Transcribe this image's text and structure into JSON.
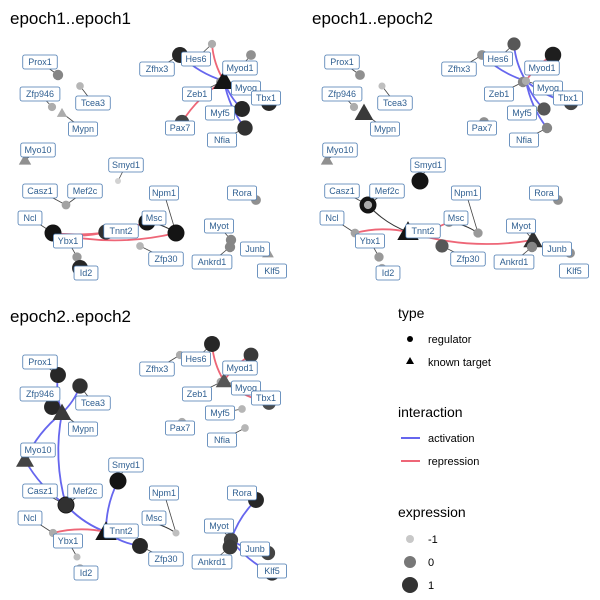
{
  "panels": [
    {
      "title": "epoch1..epoch1",
      "nodes": [
        {
          "id": "Prox1",
          "shape": "circle",
          "expr": -0.2,
          "show": true
        },
        {
          "id": "Zfp946",
          "shape": "circle",
          "expr": -0.6,
          "show": true
        },
        {
          "id": "Tcea3",
          "shape": "circle",
          "expr": -0.7,
          "show": true
        },
        {
          "id": "Mypn",
          "shape": "triangle",
          "expr": -0.6,
          "show": true
        },
        {
          "id": "Myo10",
          "shape": "triangle",
          "expr": -0.3,
          "show": true
        },
        {
          "id": "Smyd1",
          "shape": "circle",
          "expr": -1,
          "show": true
        },
        {
          "id": "Mef2c",
          "shape": "circle",
          "expr": -1,
          "show": true
        },
        {
          "id": "Casz1",
          "shape": "circle",
          "expr": -0.5,
          "show": true
        },
        {
          "id": "Ncl",
          "shape": "circle",
          "expr": 1,
          "show": true
        },
        {
          "id": "Ybx1",
          "shape": "circle",
          "expr": -0.4,
          "show": true
        },
        {
          "id": "Id2",
          "shape": "circle",
          "expr": 0.8,
          "show": true
        },
        {
          "id": "Tnnt2",
          "shape": "circle",
          "expr": 0.7,
          "show": true
        },
        {
          "id": "Zfp30",
          "shape": "circle",
          "expr": -0.7,
          "show": true
        },
        {
          "id": "Msc",
          "shape": "circle",
          "expr": 1,
          "show": true
        },
        {
          "id": "Npm1",
          "shape": "circle",
          "expr": 1,
          "show": true
        },
        {
          "id": "Myot",
          "shape": "circle",
          "expr": -0.2,
          "show": true
        },
        {
          "id": "Rora",
          "shape": "circle",
          "expr": -0.3,
          "show": true
        },
        {
          "id": "Junb",
          "shape": "triangle",
          "expr": -0.4,
          "show": true
        },
        {
          "id": "Ankrd1",
          "shape": "circle",
          "expr": -0.2,
          "show": true
        },
        {
          "id": "Klf5",
          "shape": "circle",
          "expr": -0.3,
          "show": true
        },
        {
          "id": "Zfhx3",
          "shape": "circle",
          "expr": 0.8,
          "show": true
        },
        {
          "id": "Hes6",
          "shape": "circle",
          "expr": -0.6,
          "show": true
        },
        {
          "id": "Myod1",
          "shape": "circle",
          "expr": -0.3,
          "show": true
        },
        {
          "id": "Zeb1",
          "shape": "circle",
          "expr": -0.3,
          "show": true
        },
        {
          "id": "Myog",
          "shape": "triangle",
          "expr": 1,
          "show": true
        },
        {
          "id": "Tbx1",
          "shape": "circle",
          "expr": 0.8,
          "show": true
        },
        {
          "id": "Pax7",
          "shape": "circle",
          "expr": 0.5,
          "show": true
        },
        {
          "id": "Myf5",
          "shape": "circle",
          "expr": 0.8,
          "show": true
        },
        {
          "id": "Nfia",
          "shape": "circle",
          "expr": 0.7,
          "show": true
        }
      ],
      "edges": [
        {
          "from": "Zfhx3",
          "to": "Myog",
          "type": "activation"
        },
        {
          "from": "Hes6",
          "to": "Myog",
          "type": "repression"
        },
        {
          "from": "Myog",
          "to": "Myf5",
          "type": "activation"
        },
        {
          "from": "Myog",
          "to": "Nfia",
          "type": "activation"
        },
        {
          "from": "Myog",
          "to": "Pax7",
          "type": "repression"
        },
        {
          "from": "Ncl",
          "to": "Msc",
          "type": "repression"
        },
        {
          "from": "Ncl",
          "to": "Npm1",
          "type": "repression"
        },
        {
          "from": "Ncl",
          "to": "Tnnt2",
          "type": "repression"
        },
        {
          "from": "Npm1",
          "to": "Msc",
          "type": "neutral"
        },
        {
          "from": "Mypn",
          "to": "Mypn",
          "type": "neutral"
        },
        {
          "from": "Mef2c",
          "to": "Mef2c",
          "type": "neutral"
        }
      ]
    },
    {
      "title": "epoch1..epoch2",
      "nodes": [
        {
          "id": "Prox1",
          "shape": "circle",
          "expr": -0.3,
          "show": true
        },
        {
          "id": "Zfp946",
          "shape": "circle",
          "expr": -0.6,
          "show": true
        },
        {
          "id": "Tcea3",
          "shape": "circle",
          "expr": -0.8,
          "show": true
        },
        {
          "id": "Mypn",
          "shape": "triangle",
          "expr": 0.6,
          "show": true
        },
        {
          "id": "Myo10",
          "shape": "triangle",
          "expr": -0.3,
          "show": true
        },
        {
          "id": "Smyd1",
          "shape": "circle",
          "expr": 1,
          "show": true
        },
        {
          "id": "Mef2c",
          "shape": "circle",
          "expr": 1,
          "show": true
        },
        {
          "id": "Casz1",
          "shape": "circle",
          "expr": -0.6,
          "show": true
        },
        {
          "id": "Ncl",
          "shape": "circle",
          "expr": -0.5,
          "show": true
        },
        {
          "id": "Ybx1",
          "shape": "circle",
          "expr": -0.4,
          "show": true
        },
        {
          "id": "Id2",
          "shape": "circle",
          "expr": -0.6,
          "show": true
        },
        {
          "id": "Tnnt2",
          "shape": "triangle",
          "expr": 1,
          "show": true
        },
        {
          "id": "Zfp30",
          "shape": "circle",
          "expr": 0.3,
          "show": true
        },
        {
          "id": "Msc",
          "shape": "circle",
          "expr": -0.3,
          "show": true
        },
        {
          "id": "Npm1",
          "shape": "circle",
          "expr": -0.4,
          "show": true
        },
        {
          "id": "Myot",
          "shape": "triangle",
          "expr": 0.7,
          "show": true
        },
        {
          "id": "Rora",
          "shape": "circle",
          "expr": -0.3,
          "show": true
        },
        {
          "id": "Junb",
          "shape": "circle",
          "expr": -0.3,
          "show": true
        },
        {
          "id": "Ankrd1",
          "shape": "circle",
          "expr": -0.2,
          "show": true
        },
        {
          "id": "Klf5",
          "shape": "circle",
          "expr": -0.2,
          "show": true
        },
        {
          "id": "Zfhx3",
          "shape": "circle",
          "expr": -0.3,
          "show": true
        },
        {
          "id": "Hes6",
          "shape": "circle",
          "expr": 0.3,
          "show": true
        },
        {
          "id": "Myod1",
          "shape": "circle",
          "expr": 0.9,
          "show": true
        },
        {
          "id": "Zeb1",
          "shape": "circle",
          "expr": -0.2,
          "show": true
        },
        {
          "id": "Myog",
          "shape": "circle",
          "expr": -0.6,
          "show": true
        },
        {
          "id": "Tbx1",
          "shape": "circle",
          "expr": 0.5,
          "show": true
        },
        {
          "id": "Pax7",
          "shape": "circle",
          "expr": -0.3,
          "show": true
        },
        {
          "id": "Myf5",
          "shape": "circle",
          "expr": 0.3,
          "show": true
        },
        {
          "id": "Nfia",
          "shape": "circle",
          "expr": -0.2,
          "show": true
        }
      ],
      "edges": [
        {
          "from": "Zfhx3",
          "to": "Myog",
          "type": "activation"
        },
        {
          "from": "Hes6",
          "to": "Myog",
          "type": "activation"
        },
        {
          "from": "Myod1",
          "to": "Myog",
          "type": "repression"
        },
        {
          "from": "Myog",
          "to": "Tbx1",
          "type": "activation"
        },
        {
          "from": "Myog",
          "to": "Myf5",
          "type": "activation"
        },
        {
          "from": "Myog",
          "to": "Nfia",
          "type": "activation"
        },
        {
          "from": "Tnnt2",
          "to": "Ncl",
          "type": "repression"
        },
        {
          "from": "Tnnt2",
          "to": "Msc",
          "type": "repression"
        },
        {
          "from": "Tnnt2",
          "to": "Myot",
          "type": "repression"
        },
        {
          "from": "Mef2c",
          "to": "Tnnt2",
          "type": "neutral"
        },
        {
          "from": "Npm1",
          "to": "Msc",
          "type": "neutral"
        },
        {
          "from": "Mypn",
          "to": "Mypn",
          "type": "neutral"
        }
      ]
    },
    {
      "title": "epoch2..epoch2",
      "nodes": [
        {
          "id": "Prox1",
          "shape": "circle",
          "expr": 0.8,
          "show": true
        },
        {
          "id": "Zfp946",
          "shape": "circle",
          "expr": 0.8,
          "show": true
        },
        {
          "id": "Tcea3",
          "shape": "circle",
          "expr": 0.7,
          "show": true
        },
        {
          "id": "Mypn",
          "shape": "triangle",
          "expr": 0.6,
          "show": true
        },
        {
          "id": "Myo10",
          "shape": "triangle",
          "expr": 0.5,
          "show": true
        },
        {
          "id": "Smyd1",
          "shape": "circle",
          "expr": 1,
          "show": true
        },
        {
          "id": "Mef2c",
          "shape": "circle",
          "expr": 1,
          "show": true
        },
        {
          "id": "Casz1",
          "shape": "circle",
          "expr": 0.7,
          "show": true
        },
        {
          "id": "Ncl",
          "shape": "circle",
          "expr": -0.6,
          "show": true
        },
        {
          "id": "Ybx1",
          "shape": "circle",
          "expr": -0.8,
          "show": true
        },
        {
          "id": "Id2",
          "shape": "circle",
          "expr": -0.7,
          "show": true
        },
        {
          "id": "Tnnt2",
          "shape": "triangle",
          "expr": 1,
          "show": true
        },
        {
          "id": "Zfp30",
          "shape": "circle",
          "expr": 0.8,
          "show": true
        },
        {
          "id": "Msc",
          "shape": "circle",
          "expr": -0.8,
          "show": true
        },
        {
          "id": "Npm1",
          "shape": "circle",
          "expr": -0.8,
          "show": true
        },
        {
          "id": "Myot",
          "shape": "circle",
          "expr": 0.5,
          "show": true
        },
        {
          "id": "Rora",
          "shape": "circle",
          "expr": 0.8,
          "show": true
        },
        {
          "id": "Junb",
          "shape": "circle",
          "expr": 0.5,
          "show": true
        },
        {
          "id": "Ankrd1",
          "shape": "circle",
          "expr": 0.6,
          "show": true
        },
        {
          "id": "Klf5",
          "shape": "circle",
          "expr": 0.7,
          "show": true
        },
        {
          "id": "Zfhx3",
          "shape": "circle",
          "expr": -0.6,
          "show": true
        },
        {
          "id": "Hes6",
          "shape": "circle",
          "expr": 0.8,
          "show": true
        },
        {
          "id": "Myod1",
          "shape": "circle",
          "expr": 0.6,
          "show": true
        },
        {
          "id": "Zeb1",
          "shape": "circle",
          "expr": -0.5,
          "show": true
        },
        {
          "id": "Myog",
          "shape": "triangle",
          "expr": 0.3,
          "show": true
        },
        {
          "id": "Tbx1",
          "shape": "circle",
          "expr": 0.4,
          "show": true
        },
        {
          "id": "Pax7",
          "shape": "circle",
          "expr": -0.6,
          "show": true
        },
        {
          "id": "Myf5",
          "shape": "circle",
          "expr": -0.7,
          "show": true
        },
        {
          "id": "Nfia",
          "shape": "circle",
          "expr": -0.7,
          "show": true
        }
      ],
      "edges": [
        {
          "from": "Zfp946",
          "to": "Mypn",
          "type": "activation"
        },
        {
          "from": "Prox1",
          "to": "Mypn",
          "type": "activation"
        },
        {
          "from": "Mypn",
          "to": "Tcea3",
          "type": "activation"
        },
        {
          "from": "Mypn",
          "to": "Myo10",
          "type": "activation"
        },
        {
          "from": "Mypn",
          "to": "Mef2c",
          "type": "activation"
        },
        {
          "from": "Myo10",
          "to": "Mef2c",
          "type": "activation"
        },
        {
          "from": "Mef2c",
          "to": "Tnnt2",
          "type": "activation"
        },
        {
          "from": "Casz1",
          "to": "Tnnt2",
          "type": "activation"
        },
        {
          "from": "Smyd1",
          "to": "Tnnt2",
          "type": "activation"
        },
        {
          "from": "Mef2c",
          "to": "Casz1",
          "type": "activation"
        },
        {
          "from": "Tnnt2",
          "to": "Ncl",
          "type": "repression"
        },
        {
          "from": "Tnnt2",
          "to": "Zfp30",
          "type": "activation"
        },
        {
          "from": "Hes6",
          "to": "Myog",
          "type": "repression"
        },
        {
          "from": "Myod1",
          "to": "Myog",
          "type": "repression"
        },
        {
          "from": "Myog",
          "to": "Zeb1",
          "type": "repression"
        },
        {
          "from": "Myog",
          "to": "Tbx1",
          "type": "repression"
        },
        {
          "from": "Myot",
          "to": "Junb",
          "type": "activation"
        },
        {
          "from": "Myot",
          "to": "Ankrd1",
          "type": "activation"
        },
        {
          "from": "Myot",
          "to": "Klf5",
          "type": "activation"
        },
        {
          "from": "Rora",
          "to": "Myot",
          "type": "activation"
        },
        {
          "from": "Npm1",
          "to": "Msc",
          "type": "neutral"
        }
      ]
    }
  ],
  "legend": {
    "type_title": "type",
    "type_items": [
      {
        "label": "regulator",
        "shape": "circle"
      },
      {
        "label": "known target",
        "shape": "triangle"
      }
    ],
    "interaction_title": "interaction",
    "interaction_items": [
      {
        "label": "activation",
        "color": "#6666ee"
      },
      {
        "label": "repression",
        "color": "#ee6677"
      }
    ],
    "expression_title": "expression",
    "expression_items": [
      {
        "label": "-1",
        "expr": -1
      },
      {
        "label": "0",
        "expr": 0
      },
      {
        "label": "1",
        "expr": 1
      }
    ]
  },
  "colors": {
    "activation": "#6666ee",
    "repression": "#ee6677",
    "neutral": "#333333",
    "label_border": "#4a7ab0",
    "label_text": "#2f5f91"
  }
}
